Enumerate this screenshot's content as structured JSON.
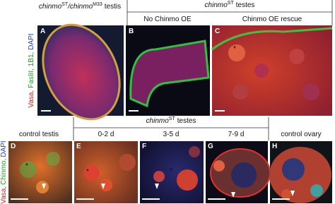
{
  "top_row": {
    "a_title": [
      "chinmo",
      "ST",
      "/chinmo",
      "M33",
      "testis"
    ],
    "group_title": [
      "chinmo",
      "ST",
      "testes"
    ],
    "b_label": "No Chinmo OE",
    "c_label": "Chinmo OE rescue",
    "stain": [
      "Vasa,",
      "FasIII, 1B1,",
      "DAPI"
    ]
  },
  "bottom_row": {
    "group_title": [
      "chinmo",
      "ST",
      "testes"
    ],
    "d_label": "control testis",
    "e_label": "0-2 d",
    "f_label": "3-5 d",
    "g_label": "7-9 d",
    "h_label": "control ovary",
    "stain": [
      "Vasa,",
      "Chinmo,",
      "DAPI"
    ]
  },
  "panel_letters": [
    "A",
    "B",
    "C",
    "D",
    "E",
    "F",
    "G",
    "H"
  ]
}
